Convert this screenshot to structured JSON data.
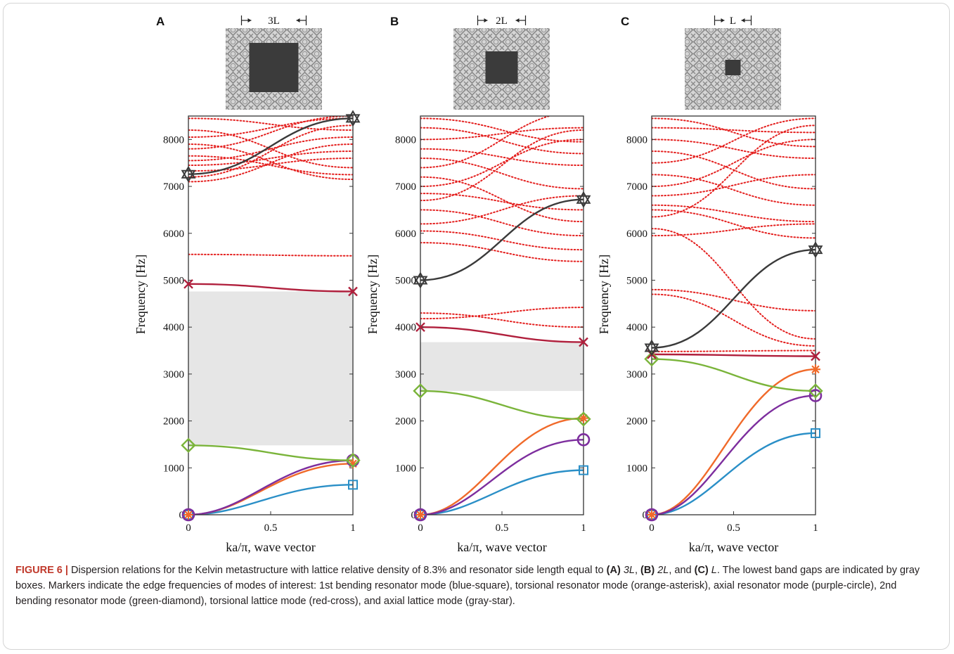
{
  "figure": {
    "axis_xlabel": "ka/π, wave vector",
    "axis_ylabel": "Frequency [Hz]",
    "marker_colors": {
      "bending1": "#2a8fc7",
      "torsional_res": "#f06a2a",
      "axial_res": "#7d2e9e",
      "bending2": "#7ab43a",
      "torsional_lat": "#b01f3c",
      "axial_lat": "#3a3a3a",
      "other_modes": "#e4201f",
      "band_gap": "#e6e6e6"
    },
    "panels": [
      {
        "letter": "A",
        "scale_label": "3L"
      },
      {
        "letter": "B",
        "scale_label": "2L"
      },
      {
        "letter": "C",
        "scale_label": "L"
      }
    ]
  },
  "chart_data": [
    {
      "type": "line",
      "panel": "A",
      "x": [
        0,
        1
      ],
      "xticks": [
        "0",
        "0.5",
        "1"
      ],
      "yticks": [
        "0",
        "1000",
        "2000",
        "3000",
        "4000",
        "5000",
        "6000",
        "7000",
        "8000"
      ],
      "xlim": [
        0,
        1
      ],
      "ylim": [
        0,
        8500
      ],
      "xlabel": "ka/π, wave vector",
      "ylabel": "Frequency [Hz]",
      "band_gap": [
        1480,
        4760
      ],
      "series": [
        {
          "name": "1st bending resonator mode (blue-square)",
          "values": [
            0,
            640
          ]
        },
        {
          "name": "torsional resonator mode (orange-asterisk)",
          "values": [
            0,
            1090
          ]
        },
        {
          "name": "axial resonator mode (purple-circle)",
          "values": [
            0,
            1160
          ]
        },
        {
          "name": "2nd bending resonator mode (green-diamond)",
          "values": [
            1480,
            1160
          ]
        },
        {
          "name": "torsional lattice mode (red-cross)",
          "values": [
            4920,
            4760
          ]
        },
        {
          "name": "axial lattice mode (gray-star)",
          "values": [
            7260,
            8450
          ]
        }
      ],
      "other_modes": [
        [
          5550,
          5520
        ],
        [
          7100,
          7900
        ],
        [
          7200,
          8300
        ],
        [
          7330,
          7600
        ],
        [
          7450,
          7750
        ],
        [
          7550,
          8050
        ],
        [
          7650,
          7250
        ],
        [
          7800,
          8500
        ],
        [
          7900,
          7150
        ],
        [
          8050,
          8450
        ],
        [
          8200,
          7400
        ],
        [
          8450,
          8200
        ]
      ]
    },
    {
      "type": "line",
      "panel": "B",
      "x": [
        0,
        1
      ],
      "xticks": [
        "0",
        "0.5",
        "1"
      ],
      "yticks": [
        "0",
        "1000",
        "2000",
        "3000",
        "4000",
        "5000",
        "6000",
        "7000",
        "8000"
      ],
      "xlim": [
        0,
        1
      ],
      "ylim": [
        0,
        8500
      ],
      "xlabel": "ka/π, wave vector",
      "ylabel": "Frequency [Hz]",
      "band_gap": [
        2640,
        3680
      ],
      "series": [
        {
          "name": "1st bending resonator mode (blue-square)",
          "values": [
            0,
            950
          ]
        },
        {
          "name": "torsional resonator mode (orange-asterisk)",
          "values": [
            0,
            2060
          ]
        },
        {
          "name": "axial resonator mode (purple-circle)",
          "values": [
            0,
            1600
          ]
        },
        {
          "name": "2nd bending resonator mode (green-diamond)",
          "values": [
            2640,
            2040
          ]
        },
        {
          "name": "torsional lattice mode (red-cross)",
          "values": [
            4000,
            3680
          ]
        },
        {
          "name": "axial lattice mode (gray-star)",
          "values": [
            5000,
            6720
          ]
        }
      ],
      "other_modes": [
        [
          4180,
          4420
        ],
        [
          4300,
          4000
        ],
        [
          5800,
          5400
        ],
        [
          6050,
          5650
        ],
        [
          6200,
          6800
        ],
        [
          6500,
          5950
        ],
        [
          6700,
          8200
        ],
        [
          6850,
          6500
        ],
        [
          7000,
          8000
        ],
        [
          7200,
          6250
        ],
        [
          7400,
          8600
        ],
        [
          7600,
          6950
        ],
        [
          7800,
          7450
        ],
        [
          8000,
          8250
        ],
        [
          8250,
          7700
        ],
        [
          8450,
          7950
        ]
      ]
    },
    {
      "type": "line",
      "panel": "C",
      "x": [
        0,
        1
      ],
      "xticks": [
        "0",
        "0.5",
        "1"
      ],
      "yticks": [
        "0",
        "1000",
        "2000",
        "3000",
        "4000",
        "5000",
        "6000",
        "7000",
        "8000"
      ],
      "xlim": [
        0,
        1
      ],
      "ylim": [
        0,
        8500
      ],
      "xlabel": "ka/π, wave vector",
      "ylabel": "Frequency [Hz]",
      "band_gap": [],
      "series": [
        {
          "name": "1st bending resonator mode (blue-square)",
          "values": [
            0,
            1740
          ]
        },
        {
          "name": "torsional resonator mode (orange-asterisk)",
          "values": [
            0,
            3100
          ]
        },
        {
          "name": "axial resonator mode (purple-circle)",
          "values": [
            0,
            2540
          ]
        },
        {
          "name": "2nd bending resonator mode (green-diamond)",
          "values": [
            3320,
            2640
          ]
        },
        {
          "name": "torsional lattice mode (red-cross)",
          "values": [
            3420,
            3380
          ]
        },
        {
          "name": "axial lattice mode (gray-star)",
          "values": [
            3560,
            5650
          ]
        }
      ],
      "other_modes": [
        [
          3480,
          3500
        ],
        [
          4700,
          3600
        ],
        [
          4800,
          4350
        ],
        [
          5950,
          6200
        ],
        [
          6100,
          3750
        ],
        [
          6350,
          8300
        ],
        [
          6500,
          5900
        ],
        [
          6600,
          6250
        ],
        [
          6800,
          7250
        ],
        [
          7000,
          8000
        ],
        [
          7250,
          6600
        ],
        [
          7500,
          8450
        ],
        [
          7750,
          6950
        ],
        [
          8000,
          7600
        ],
        [
          8250,
          8150
        ],
        [
          8450,
          7850
        ]
      ]
    }
  ],
  "caption": {
    "label": "FIGURE 6 |",
    "t1": " Dispersion relations for the Kelvin metastructure with lattice relative density of 8.3% and resonator side length equal to ",
    "a": "(A)",
    "a_val": "3L",
    "t2": ", ",
    "b": "(B)",
    "b_val": "2L",
    "t3": ", and ",
    "c": "(C)",
    "c_val": "L",
    "t4": ". The lowest band gaps are indicated by gray boxes. Markers indicate the edge frequencies of modes of interest: 1st bending resonator mode (blue-square), torsional resonator mode (orange-asterisk), axial resonator mode (purple-circle), 2nd bending resonator mode (green-diamond), torsional lattice mode (red-cross), and axial lattice mode (gray-star)."
  }
}
